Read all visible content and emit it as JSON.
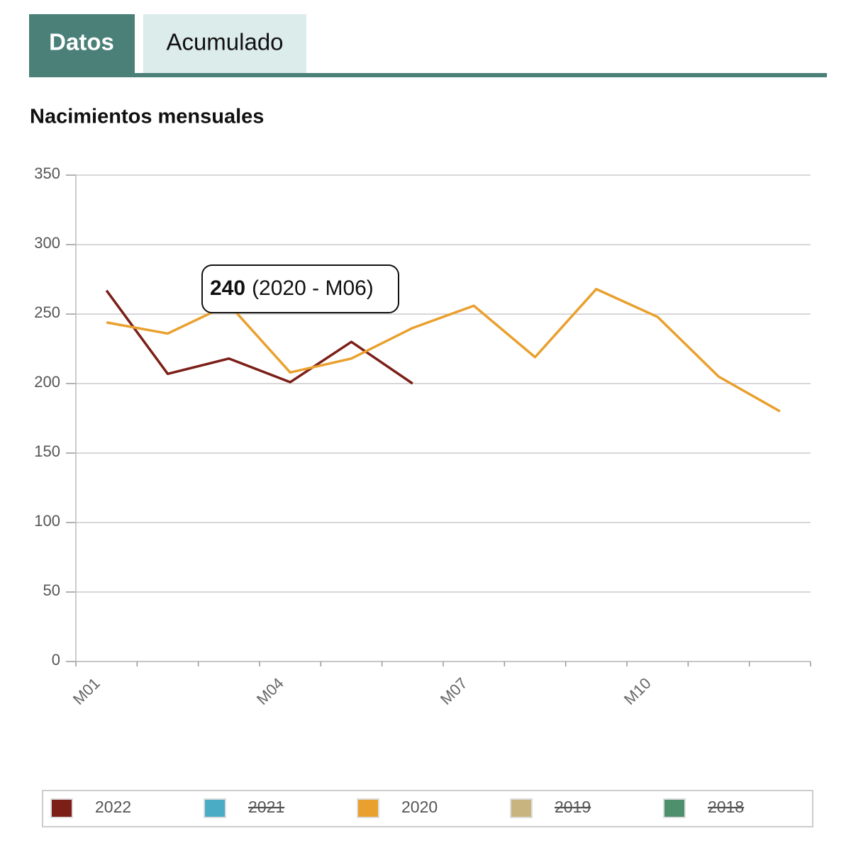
{
  "tabs": [
    "Datos",
    "Acumulado"
  ],
  "chart_data": {
    "type": "line",
    "title": "Nacimientos mensuales",
    "categories": [
      "M01",
      null,
      null,
      "M04",
      null,
      null,
      "M07",
      null,
      null,
      "M10",
      null,
      null
    ],
    "series": [
      {
        "name": "2022",
        "color": "#7b1f17",
        "visible": true,
        "values": [
          267,
          207,
          218,
          201,
          230,
          200,
          null,
          null,
          null,
          null,
          null,
          null
        ]
      },
      {
        "name": "2021",
        "color": "#4bacc6",
        "visible": false,
        "values": [
          null,
          null,
          null,
          null,
          null,
          null,
          null,
          null,
          null,
          null,
          null,
          null
        ]
      },
      {
        "name": "2020",
        "color": "#e9a02e",
        "visible": true,
        "values": [
          244,
          236,
          257,
          208,
          218,
          240,
          256,
          219,
          268,
          248,
          205,
          180
        ]
      },
      {
        "name": "2019",
        "color": "#c8b47e",
        "visible": false,
        "values": [
          null,
          null,
          null,
          null,
          null,
          null,
          null,
          null,
          null,
          null,
          null,
          null
        ]
      },
      {
        "name": "2018",
        "color": "#4e8f6c",
        "visible": false,
        "values": [
          null,
          null,
          null,
          null,
          null,
          null,
          null,
          null,
          null,
          null,
          null,
          null
        ]
      }
    ],
    "tooltip": {
      "value": 240,
      "label": "(2020 - M06)"
    },
    "ylim": [
      0,
      350
    ],
    "yticks": [
      0,
      50,
      100,
      150,
      200,
      250,
      300,
      350
    ],
    "grid": true,
    "legend": "bottom"
  }
}
